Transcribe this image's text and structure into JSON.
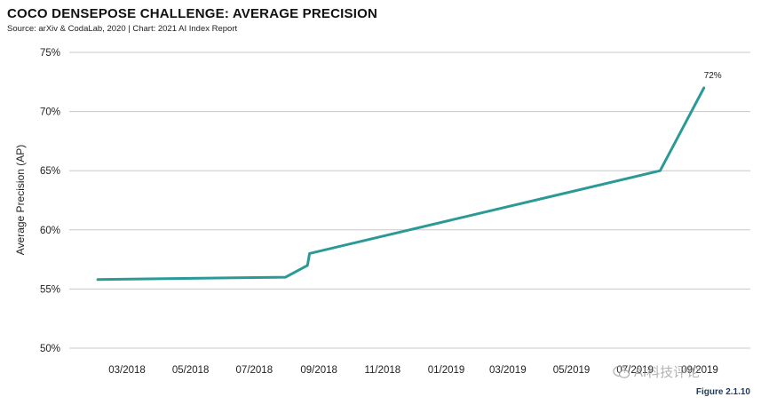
{
  "header": {
    "title": "COCO DENSEPOSE CHALLENGE: AVERAGE PRECISION",
    "source": "Source: arXiv & CodaLab, 2020 | Chart: 2021 AI Index Report"
  },
  "figure_label": "Figure 2.1.10",
  "watermark": {
    "text": "AI科技评论",
    "icon": "wechat-icon"
  },
  "colors": {
    "line": "#2a9a96",
    "grid": "#c8c8c8",
    "text": "#222222"
  },
  "chart_data": {
    "type": "line",
    "title": "COCO DENSEPOSE CHALLENGE: AVERAGE PRECISION",
    "ylabel": "Average Precision (AP)",
    "xlabel": "",
    "ylim": [
      50,
      75
    ],
    "yticks": [
      50,
      55,
      60,
      65,
      70,
      75
    ],
    "ytick_labels": [
      "50%",
      "55%",
      "60%",
      "65%",
      "70%",
      "75%"
    ],
    "xticks": [
      "03/2018",
      "05/2018",
      "07/2018",
      "09/2018",
      "11/2018",
      "01/2019",
      "03/2019",
      "05/2019",
      "07/2019",
      "09/2019"
    ],
    "grid": true,
    "series": [
      {
        "values": [
          {
            "x": "2018-02-01",
            "y": 55.8
          },
          {
            "x": "2018-07-31",
            "y": 56.0
          },
          {
            "x": "2018-08-21",
            "y": 57.0
          },
          {
            "x": "2018-08-23",
            "y": 58.0
          },
          {
            "x": "2019-07-25",
            "y": 65.0
          },
          {
            "x": "2019-09-05",
            "y": 72.0
          }
        ]
      }
    ],
    "annotations": [
      {
        "x": "2019-09-05",
        "y": 72.0,
        "text": "72%"
      }
    ]
  }
}
